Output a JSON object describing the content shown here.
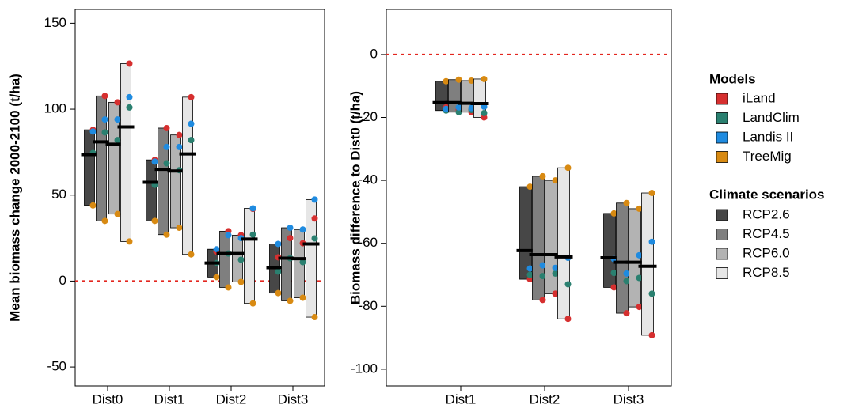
{
  "chart_data": [
    {
      "type": "floating-bar",
      "y_label": "Mean biomass change 2000-2100 (t/ha)",
      "categories": [
        "Dist0",
        "Dist1",
        "Dist2",
        "Dist3"
      ],
      "ylim": [
        -61,
        158
      ],
      "yticks": [
        -50,
        0,
        50,
        100,
        150
      ],
      "reference_line": 0,
      "models_title": "Models",
      "legend_title": "Climate scenarios",
      "models": [
        {
          "name": "iLand",
          "color": "#d62f2f"
        },
        {
          "name": "LandClim",
          "color": "#2a8070"
        },
        {
          "name": "Landis II",
          "color": "#1f8be0"
        },
        {
          "name": "TreeMig",
          "color": "#d88a12"
        }
      ],
      "series": [
        {
          "name": "RCP2.6",
          "color": "#474747",
          "values": [
            73.6,
            57.5,
            10.5,
            7.8
          ],
          "models": [
            [
              88,
              74.5,
              87,
              44
            ],
            [
              70.5,
              56,
              69.5,
              35
            ],
            [
              17,
              10.5,
              18.5,
              2.3
            ],
            [
              13.8,
              5.5,
              21.6,
              -7
            ]
          ]
        },
        {
          "name": "RCP4.5",
          "color": "#7f7f7f",
          "values": [
            81,
            65,
            16,
            13.3
          ],
          "models": [
            [
              107.7,
              86.5,
              94,
              35
            ],
            [
              89,
              68.5,
              78,
              27
            ],
            [
              29,
              16,
              26.7,
              -3.7
            ],
            [
              25,
              13.3,
              31,
              -11.5
            ]
          ]
        },
        {
          "name": "RCP6.0",
          "color": "#b3b3b3",
          "values": [
            79.6,
            64,
            16,
            13
          ],
          "models": [
            [
              104,
              82,
              94,
              39
            ],
            [
              85,
              64.5,
              78,
              31
            ],
            [
              26.7,
              12.4,
              25,
              -0.5
            ],
            [
              22,
              11,
              30,
              -9.7
            ]
          ]
        },
        {
          "name": "RCP8.5",
          "color": "#e6e6e6",
          "values": [
            89.7,
            74,
            24.4,
            21.6
          ],
          "models": [
            [
              126.5,
              101,
              107,
              23
            ],
            [
              107,
              82,
              91.5,
              15.5
            ],
            [
              42,
              27,
              42.3,
              -13
            ],
            [
              36.4,
              24.8,
              47.4,
              -21
            ]
          ]
        }
      ]
    },
    {
      "type": "floating-bar",
      "y_label": "Biomass difference to Dist0 (t/ha)",
      "categories": [
        "Dist1",
        "Dist2",
        "Dist3"
      ],
      "ylim": [
        -105.3,
        14.3
      ],
      "yticks": [
        -100,
        -80,
        -60,
        -40,
        -20,
        0
      ],
      "reference_line": 0,
      "series": [
        {
          "name": "RCP2.6",
          "color": "#474747",
          "values": [
            -15.3,
            -62.3,
            -64.6
          ],
          "models": [
            [
              -16.8,
              -17.8,
              -17.3,
              -8.5
            ],
            [
              -71.4,
              -70,
              -68,
              -42
            ],
            [
              -74,
              -69.4,
              -65,
              -50.5
            ]
          ]
        },
        {
          "name": "RCP4.5",
          "color": "#7f7f7f",
          "values": [
            -15.3,
            -63.6,
            -66
          ],
          "models": [
            [
              -17.6,
              -18.3,
              -16.8,
              -8
            ],
            [
              -78,
              -70.4,
              -67,
              -38.7
            ],
            [
              -82.2,
              -72,
              -69.6,
              -47.2
            ]
          ]
        },
        {
          "name": "RCP6.0",
          "color": "#b3b3b3",
          "values": [
            -15.5,
            -63.6,
            -66
          ],
          "models": [
            [
              -18.3,
              -17.6,
              -17,
              -8.3
            ],
            [
              -76,
              -69.6,
              -67.8,
              -40
            ],
            [
              -80.2,
              -71,
              -63.8,
              -49
            ]
          ]
        },
        {
          "name": "RCP8.5",
          "color": "#e6e6e6",
          "values": [
            -15.6,
            -64.3,
            -67.3
          ],
          "models": [
            [
              -20,
              -18.6,
              -16.6,
              -7.8
            ],
            [
              -84,
              -73,
              -64.6,
              -36
            ],
            [
              -89.2,
              -76,
              -59.5,
              -44
            ]
          ]
        }
      ]
    }
  ]
}
